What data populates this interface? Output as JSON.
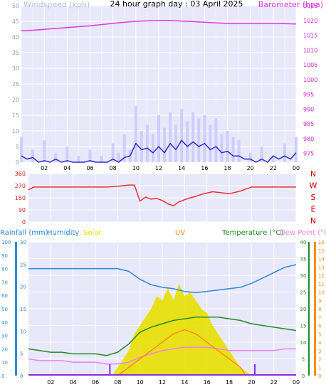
{
  "title": "24 hour graph day : 03 April 2025",
  "colors": {
    "background": "#e8e8fb",
    "grid": "#ffffff",
    "wind_speed": "#2b2bc8",
    "wind_gust": "#c8c8ff",
    "barometer": "#e036e0",
    "wind_dir": "#e83030",
    "rain": "#8a2be2",
    "humidity": "#2a8ad8",
    "solar": "#e8e000",
    "uv": "#ff8c1a",
    "temperature": "#228b22",
    "dew_point": "#ee82ee",
    "compass": "#cc0000"
  },
  "chart_data": [
    {
      "type": "line",
      "panel": "wind-barometer",
      "ylabel": "Windspeed (kph)",
      "y2label": "Barometer (hpa)",
      "ylim": [
        0,
        50
      ],
      "y2lim": [
        972,
        1025
      ],
      "yticks": [
        "0",
        "5",
        "10",
        "15",
        "20",
        "25",
        "30",
        "35",
        "40",
        "45",
        "50"
      ],
      "y2ticks": [
        "975",
        "980",
        "985",
        "990",
        "995",
        "1000",
        "1005",
        "1010",
        "1015",
        "1020",
        "1025"
      ],
      "xticks": [
        "02",
        "04",
        "06",
        "08",
        "10",
        "12",
        "14",
        "16",
        "18",
        "20",
        "22",
        "00"
      ],
      "xlim": [
        0,
        24
      ],
      "grid": true,
      "series": [
        {
          "name": "Wind Gust",
          "x": [
            0,
            1,
            2,
            3,
            4,
            5,
            6,
            7,
            8,
            8.5,
            9,
            9.5,
            10,
            10.5,
            11,
            11.5,
            12,
            12.5,
            13,
            13.5,
            14,
            14.5,
            15,
            15.5,
            16,
            16.5,
            17,
            17.5,
            18,
            18.5,
            19,
            20,
            21,
            22,
            23,
            24
          ],
          "values": [
            8,
            4,
            7,
            3,
            5,
            2,
            4,
            2,
            6,
            3,
            9,
            4,
            18,
            10,
            12,
            9,
            15,
            11,
            16,
            12,
            17,
            13,
            16,
            14,
            15,
            12,
            14,
            9,
            10,
            8,
            7,
            3,
            5,
            2,
            6,
            8
          ]
        },
        {
          "name": "Wind Speed",
          "x": [
            0,
            0.5,
            1,
            1.5,
            2,
            2.5,
            3,
            3.5,
            4,
            4.5,
            5,
            5.5,
            6,
            6.5,
            7,
            7.5,
            8,
            8.5,
            9,
            9.5,
            10,
            10.5,
            11,
            11.5,
            12,
            12.5,
            13,
            13.5,
            14,
            14.5,
            15,
            15.5,
            16,
            16.5,
            17,
            17.5,
            18,
            18.5,
            19,
            19.5,
            20,
            20.5,
            21,
            21.5,
            22,
            22.5,
            23,
            23.5,
            24
          ],
          "values": [
            2,
            1,
            1.5,
            0,
            0.5,
            0,
            1,
            0,
            0.5,
            0,
            0,
            0,
            0.5,
            0,
            0,
            0,
            1,
            0,
            1.5,
            2,
            6,
            4,
            4.5,
            3,
            5,
            3,
            6,
            4,
            7,
            5,
            6.5,
            5,
            6,
            4,
            5,
            3,
            3.5,
            2,
            2,
            1,
            1,
            0,
            1,
            0,
            2,
            1,
            2,
            1,
            3
          ]
        },
        {
          "name": "Barometer",
          "x": [
            0,
            1,
            2,
            3,
            4,
            5,
            6,
            7,
            8,
            9,
            10,
            11,
            12,
            13,
            14,
            15,
            16,
            17,
            18,
            19,
            20,
            21,
            22,
            23,
            24
          ],
          "values": [
            1016.5,
            1016.7,
            1017,
            1017.3,
            1017.6,
            1017.9,
            1018.2,
            1018.6,
            1019,
            1019.4,
            1019.7,
            1019.9,
            1020,
            1020,
            1019.8,
            1019.6,
            1019.4,
            1019.2,
            1019,
            1019,
            1019,
            1019,
            1019,
            1018.9,
            1018.8
          ]
        }
      ]
    },
    {
      "type": "line",
      "panel": "wind-direction",
      "ylim": [
        0,
        360
      ],
      "yticks": [
        "0",
        "90",
        "180",
        "270",
        "360"
      ],
      "compass": [
        "N",
        "W",
        "S",
        "E",
        "N"
      ],
      "xlim": [
        0,
        24
      ],
      "series": [
        {
          "name": "Wind Direction",
          "x": [
            0,
            0.5,
            1,
            2,
            3,
            4,
            5,
            6,
            7,
            8,
            9,
            9.5,
            10,
            10.5,
            11,
            11.5,
            12,
            12.5,
            13,
            13.5,
            14,
            14.5,
            15,
            15.5,
            16,
            16.5,
            17,
            17.5,
            18,
            19,
            20,
            21,
            22,
            23,
            24
          ],
          "values": [
            240,
            260,
            260,
            260,
            260,
            260,
            260,
            260,
            260,
            265,
            275,
            275,
            155,
            185,
            170,
            175,
            160,
            135,
            120,
            150,
            165,
            180,
            190,
            205,
            215,
            225,
            220,
            215,
            210,
            230,
            260,
            260,
            260,
            260,
            260
          ]
        }
      ]
    },
    {
      "type": "line",
      "panel": "temperature-humidity-solar",
      "legend": [
        "Rainfall (mm)",
        "Humidity",
        "Solar",
        "UV",
        "Temperature (°C)",
        "Dew Point (°C)"
      ],
      "ylim_rain": [
        0,
        30
      ],
      "ylim_humidity": [
        0,
        100
      ],
      "ylim_temp": [
        0,
        40
      ],
      "ylim_uv": [
        0,
        16
      ],
      "rain_ticks": [
        "0",
        "5",
        "10",
        "15",
        "20",
        "25",
        "30"
      ],
      "humidity_ticks": [
        "0",
        "10",
        "20",
        "30",
        "40",
        "50",
        "60",
        "70",
        "80",
        "90",
        "100"
      ],
      "temp_ticks": [
        "0",
        "5",
        "10",
        "15",
        "20",
        "25",
        "30",
        "35",
        "40"
      ],
      "uv_ticks": [
        "0",
        "1",
        "2",
        "3",
        "4",
        "5",
        "6",
        "7",
        "8",
        "9",
        "10",
        "11",
        "12",
        "13",
        "14",
        "15",
        "16"
      ],
      "xticks": [
        "02",
        "04",
        "06",
        "08",
        "10",
        "12",
        "14",
        "16",
        "18",
        "20",
        "22",
        "00"
      ],
      "xlim": [
        0,
        24
      ],
      "series": [
        {
          "name": "Humidity",
          "x": [
            0,
            1,
            2,
            3,
            4,
            5,
            6,
            7,
            8,
            9,
            10,
            11,
            12,
            13,
            14,
            15,
            16,
            17,
            18,
            19,
            20,
            21,
            22,
            23,
            24
          ],
          "values": [
            80,
            80,
            80,
            80,
            80,
            80,
            80,
            80,
            80,
            78,
            72,
            68,
            66,
            65,
            63,
            62,
            63,
            64,
            65,
            66,
            69,
            73,
            77,
            81,
            83
          ]
        },
        {
          "name": "Temperature",
          "x": [
            0,
            1,
            2,
            3,
            4,
            5,
            6,
            7,
            8,
            9,
            10,
            11,
            12,
            13,
            14,
            15,
            16,
            17,
            18,
            19,
            20,
            21,
            22,
            23,
            24
          ],
          "values": [
            8,
            7.5,
            7,
            7,
            6.5,
            6.5,
            6.5,
            6,
            7,
            9.5,
            13,
            14.5,
            15.5,
            16.5,
            17,
            17.5,
            17.5,
            17.5,
            17,
            16.5,
            15.5,
            15,
            14.5,
            14,
            13.5
          ]
        },
        {
          "name": "Dew Point",
          "x": [
            0,
            1,
            2,
            3,
            4,
            5,
            6,
            7,
            8,
            9,
            10,
            11,
            12,
            13,
            14,
            15,
            16,
            17,
            18,
            19,
            20,
            21,
            22,
            23,
            24
          ],
          "values": [
            5,
            4.5,
            4.5,
            4.5,
            4,
            4,
            4,
            3.5,
            3.5,
            4,
            5.5,
            6.5,
            7.5,
            8,
            8.5,
            8.5,
            8.5,
            8,
            7.5,
            7.5,
            7.5,
            7.5,
            7.5,
            8,
            8
          ]
        },
        {
          "name": "Solar",
          "x": [
            7.5,
            8,
            8.5,
            9,
            9.5,
            10,
            10.5,
            11,
            11.5,
            12,
            12.5,
            13,
            13.5,
            14,
            14.5,
            15,
            15.5,
            16,
            16.5,
            17,
            17.5,
            18,
            18.5,
            19,
            19.5,
            20
          ],
          "values": [
            0,
            1,
            2,
            3,
            5,
            6,
            7,
            8,
            9.5,
            9,
            10.5,
            9,
            11,
            9.5,
            10,
            9,
            8,
            7.5,
            6,
            5,
            4,
            3,
            2,
            1,
            0.5,
            0
          ]
        },
        {
          "name": "UV",
          "x": [
            8,
            9,
            10,
            11,
            12,
            13,
            14,
            15,
            16,
            17,
            18,
            19,
            19.5
          ],
          "values": [
            0,
            1,
            2,
            3,
            4,
            5,
            5.5,
            5,
            4,
            3,
            2,
            1,
            0
          ]
        },
        {
          "name": "Rainfall",
          "x": [
            7.3,
            20.3
          ],
          "values": [
            0.3,
            0.3
          ]
        }
      ]
    }
  ]
}
